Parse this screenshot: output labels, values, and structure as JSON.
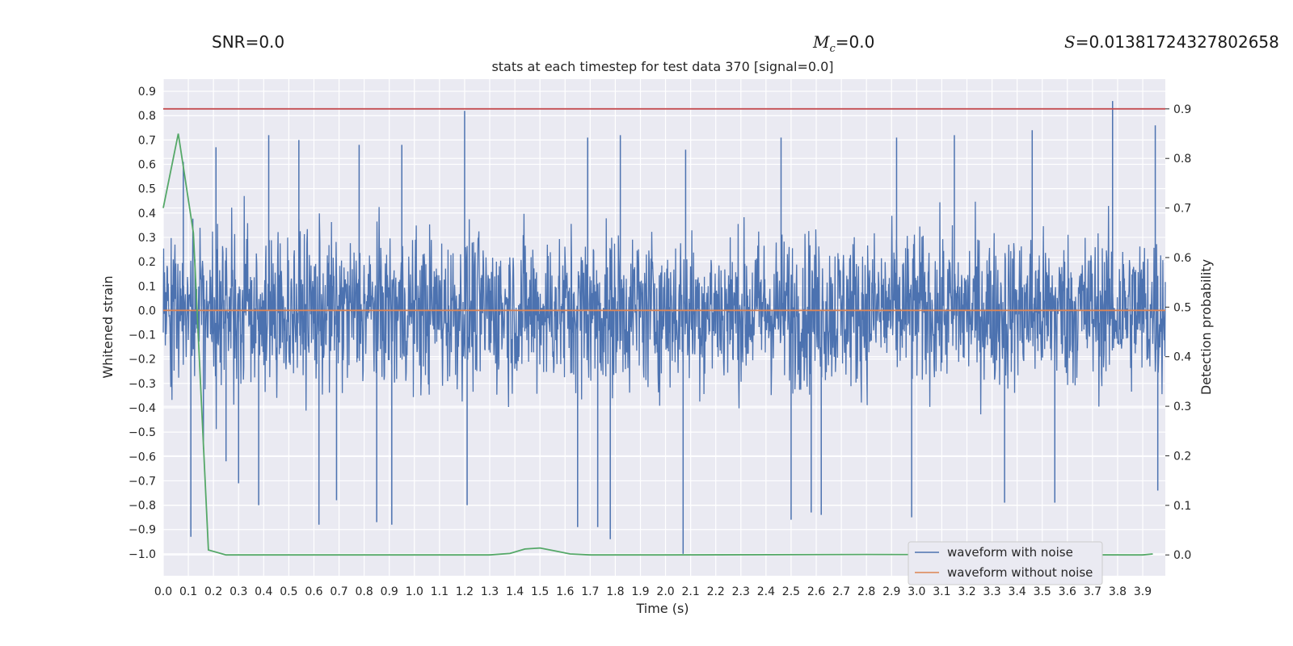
{
  "header": {
    "snr_label": "SNR",
    "snr_value": "=0.0",
    "mc_label": "M",
    "mc_sub": "c",
    "mc_value": "=0.0",
    "s_label": "S",
    "s_value": "=0.01381724327802658"
  },
  "chart_data": {
    "type": "line",
    "title": "stats at each timestep for test data 370 [signal=0.0]",
    "xlabel": "Time (s)",
    "ylabel": "Whitened strain",
    "y2label": "Detection probability",
    "xlim": [
      0.0,
      3.99
    ],
    "ylim": [
      -1.09,
      0.95
    ],
    "y2lim": [
      -0.042,
      0.96
    ],
    "x_ticks": [
      "0.0",
      "0.1",
      "0.2",
      "0.3",
      "0.4",
      "0.5",
      "0.6",
      "0.7",
      "0.8",
      "0.9",
      "1.0",
      "1.1",
      "1.2",
      "1.3",
      "1.4",
      "1.5",
      "1.6",
      "1.7",
      "1.8",
      "1.9",
      "2.0",
      "2.1",
      "2.2",
      "2.3",
      "2.4",
      "2.5",
      "2.6",
      "2.7",
      "2.8",
      "2.9",
      "3.0",
      "3.1",
      "3.2",
      "3.3",
      "3.4",
      "3.5",
      "3.6",
      "3.7",
      "3.8",
      "3.9"
    ],
    "y_ticks": [
      "0.9",
      "0.8",
      "0.7",
      "0.6",
      "0.5",
      "0.4",
      "0.3",
      "0.2",
      "0.1",
      "0.0",
      "−0.1",
      "−0.2",
      "−0.3",
      "−0.4",
      "−0.5",
      "−0.6",
      "−0.7",
      "−0.8",
      "−0.9",
      "−1.0"
    ],
    "y2_ticks": [
      "0.9",
      "0.8",
      "0.7",
      "0.6",
      "0.5",
      "0.4",
      "0.3",
      "0.2",
      "0.1",
      "0.0"
    ],
    "grid": true,
    "legend_position": "lower-right",
    "series": [
      {
        "name": "waveform with noise",
        "color": "#4c72b0",
        "axis": "left",
        "note": "dense whitened noise waveform",
        "noise_peaks": [
          [
            0.08,
            0.61
          ],
          [
            0.11,
            -0.93
          ],
          [
            0.16,
            -0.57
          ],
          [
            0.21,
            0.67
          ],
          [
            0.25,
            -0.62
          ],
          [
            0.3,
            -0.71
          ],
          [
            0.38,
            -0.8
          ],
          [
            0.42,
            0.72
          ],
          [
            0.54,
            0.7
          ],
          [
            0.62,
            -0.88
          ],
          [
            0.69,
            -0.78
          ],
          [
            0.78,
            0.68
          ],
          [
            0.85,
            -0.87
          ],
          [
            0.91,
            -0.88
          ],
          [
            0.95,
            0.68
          ],
          [
            1.2,
            0.82
          ],
          [
            1.21,
            -0.8
          ],
          [
            1.65,
            -0.89
          ],
          [
            1.69,
            0.71
          ],
          [
            1.73,
            -0.89
          ],
          [
            1.78,
            -0.94
          ],
          [
            1.82,
            0.72
          ],
          [
            2.07,
            -1.0
          ],
          [
            2.08,
            0.66
          ],
          [
            2.46,
            0.71
          ],
          [
            2.5,
            -0.86
          ],
          [
            2.58,
            -0.83
          ],
          [
            2.62,
            -0.84
          ],
          [
            2.92,
            0.71
          ],
          [
            2.98,
            -0.85
          ],
          [
            3.15,
            0.72
          ],
          [
            3.35,
            -0.79
          ],
          [
            3.46,
            0.74
          ],
          [
            3.55,
            -0.79
          ],
          [
            3.78,
            0.86
          ],
          [
            3.95,
            0.76
          ],
          [
            3.96,
            -0.74
          ]
        ]
      },
      {
        "name": "waveform without noise",
        "color": "#dd8452",
        "axis": "left",
        "x": [
          0.0,
          3.99
        ],
        "y": [
          0.0,
          0.0
        ]
      },
      {
        "color": "#55a868",
        "axis": "right",
        "x": [
          0.0,
          0.06,
          0.12,
          0.18,
          0.25,
          0.5,
          1.0,
          1.3,
          1.38,
          1.44,
          1.5,
          1.56,
          1.62,
          1.7,
          2.0,
          2.8,
          3.9,
          3.94
        ],
        "y": [
          0.7,
          0.85,
          0.65,
          0.01,
          0.0,
          0.0,
          0.0,
          0.0,
          0.003,
          0.012,
          0.014,
          0.008,
          0.002,
          0.0,
          0.0,
          0.001,
          0.0,
          0.002
        ]
      },
      {
        "color": "#c44e52",
        "axis": "right",
        "x": [
          0.0,
          3.99
        ],
        "y": [
          0.9,
          0.9
        ]
      }
    ]
  }
}
